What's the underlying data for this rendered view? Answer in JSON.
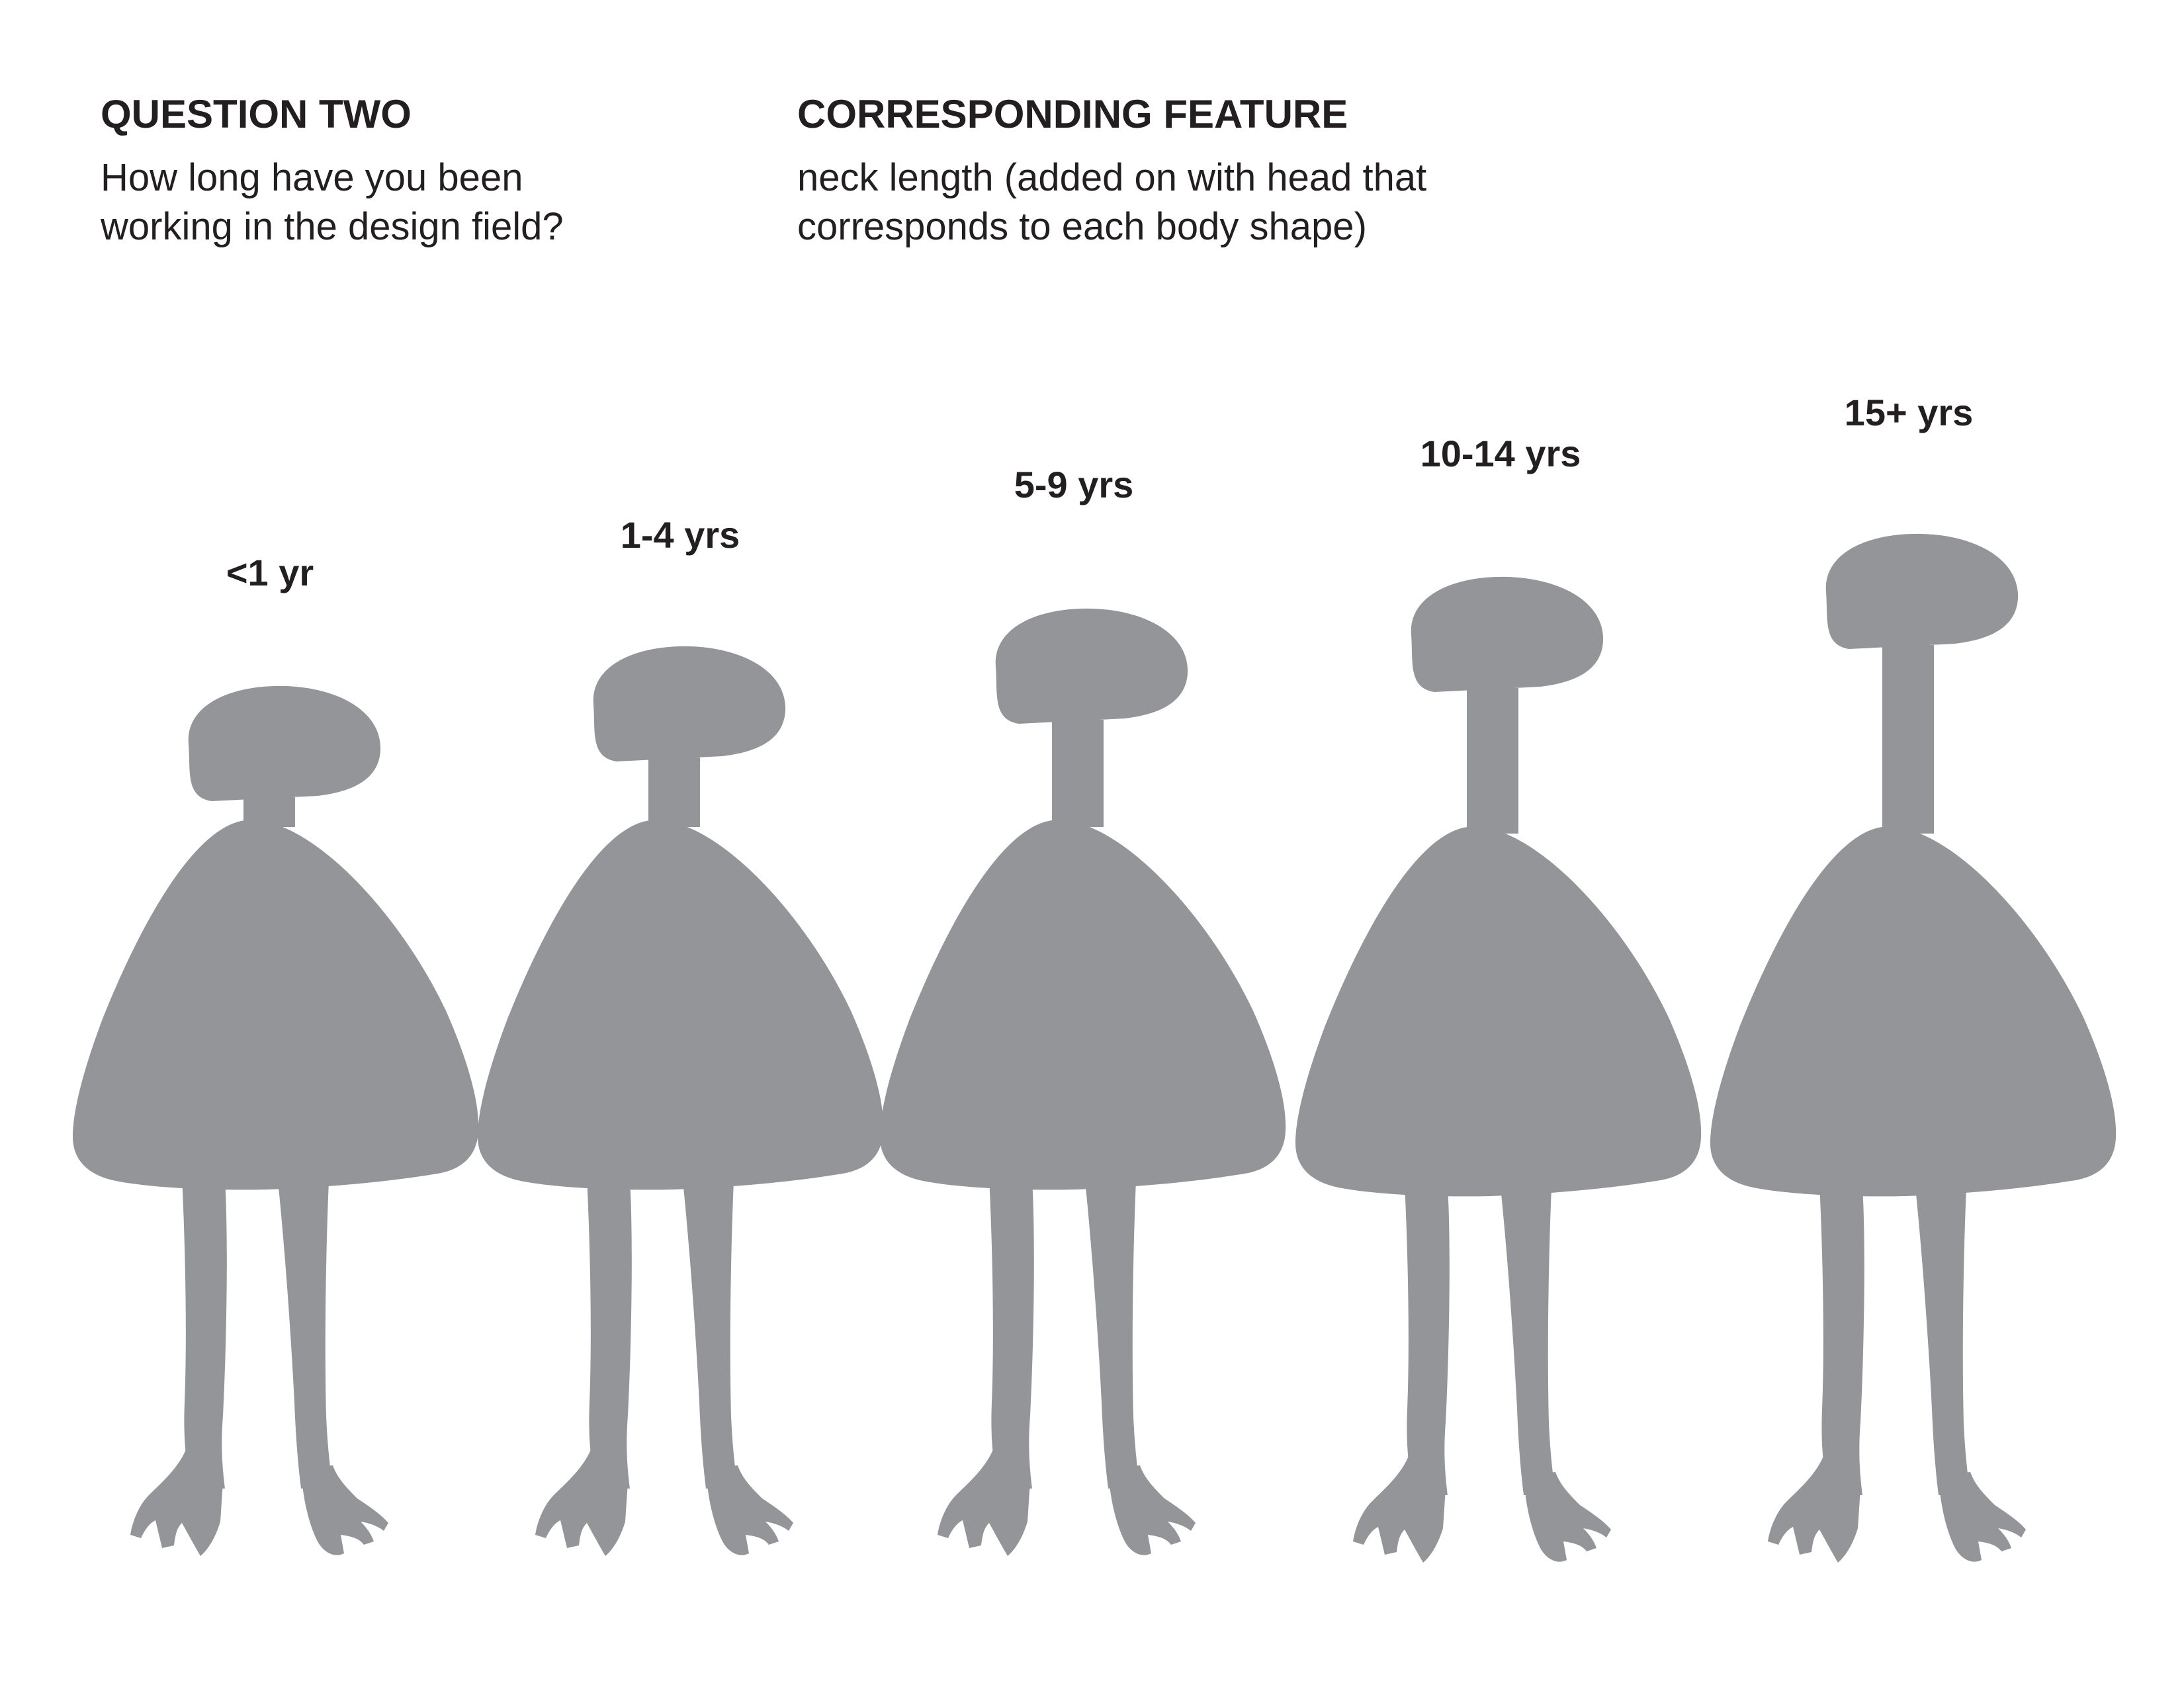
{
  "question": {
    "heading": "QUESTION TWO",
    "line1": "How long have you been",
    "line2": "working in the design field?"
  },
  "feature": {
    "heading": "CORRESPONDING FEATURE",
    "line1": "neck length (added on with head that",
    "line2": "corresponds to each body shape)"
  },
  "figures": [
    {
      "label": "<1 yr"
    },
    {
      "label": "1-4 yrs"
    },
    {
      "label": "5-9 yrs"
    },
    {
      "label": "10-14 yrs"
    },
    {
      "label": "15+ yrs"
    }
  ],
  "colors": {
    "figure": "#939598",
    "text": "#231f20"
  }
}
